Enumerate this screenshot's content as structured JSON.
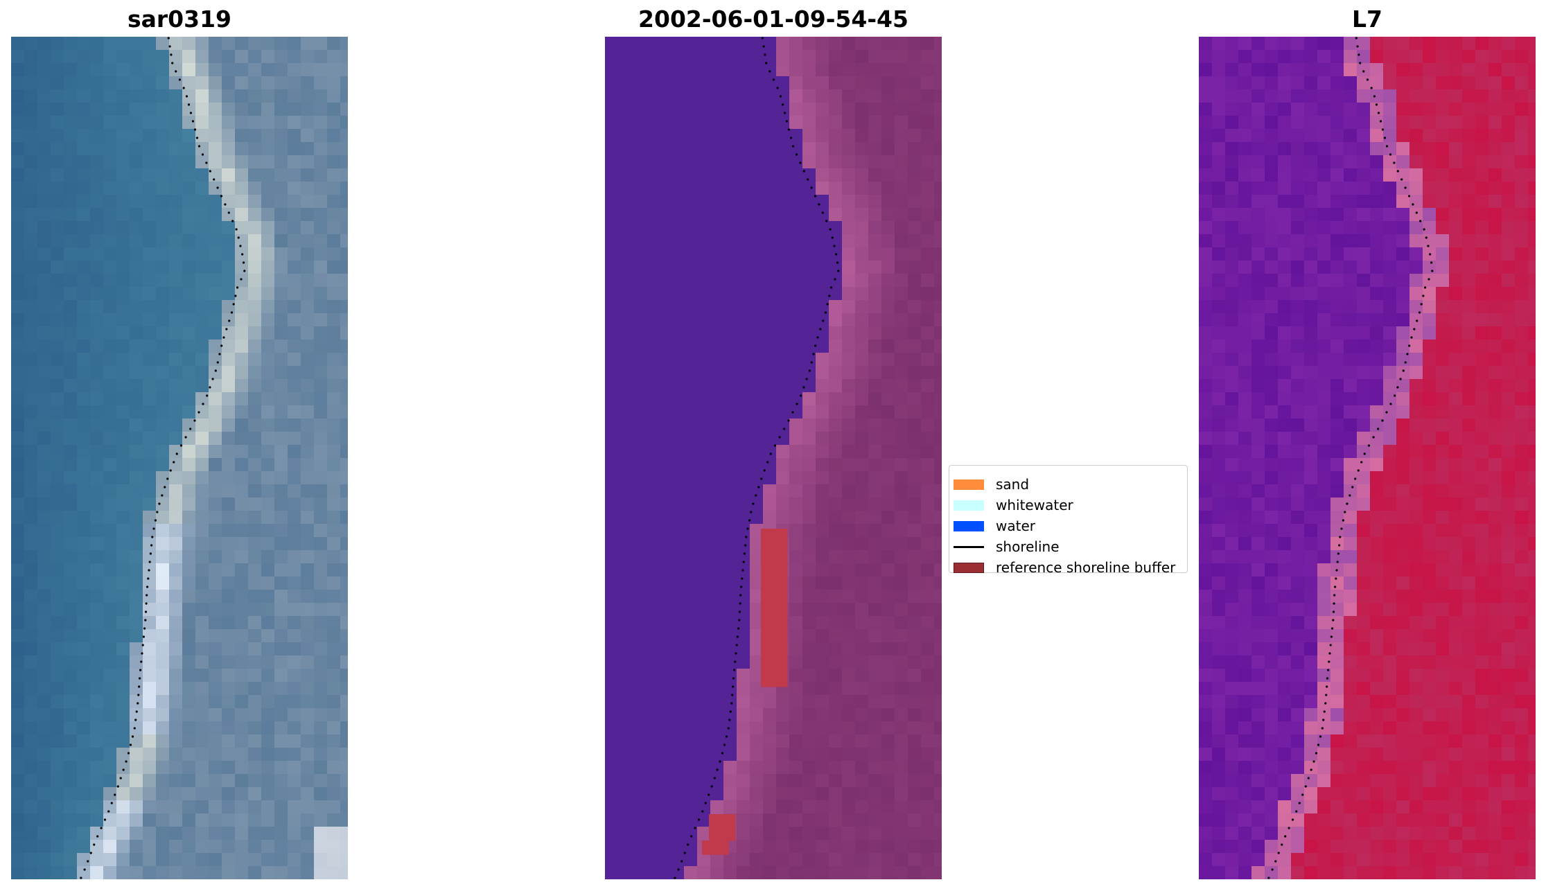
{
  "panels": [
    {
      "title": "sar0319",
      "image": "true-color satellite image of shoreline"
    },
    {
      "title": "2002-06-01-09-54-45",
      "image": "classified image with reference shoreline buffer"
    },
    {
      "title": "L7",
      "image": "false-color index image of shoreline"
    }
  ],
  "legend": {
    "items": [
      {
        "label": "sand",
        "color": "#ff8c3a",
        "kind": "patch"
      },
      {
        "label": "whitewater",
        "color": "#c8ffff",
        "kind": "patch"
      },
      {
        "label": "water",
        "color": "#0050ff",
        "kind": "patch"
      },
      {
        "label": "shoreline",
        "color": "#000000",
        "kind": "line"
      },
      {
        "label": "reference shoreline buffer",
        "color": "#9b2d35",
        "kind": "patch"
      }
    ]
  },
  "shoreline_icon": "dotted-shoreline-line",
  "colors": {
    "sar_water": "#3f7ba0",
    "sar_sand": "#c9d4d6",
    "classified_water": "#542497",
    "classified_land": "#8a3a7a",
    "buffer": "#c03a4c",
    "index_water": "#6a12a0",
    "index_land": "#c8123e"
  }
}
